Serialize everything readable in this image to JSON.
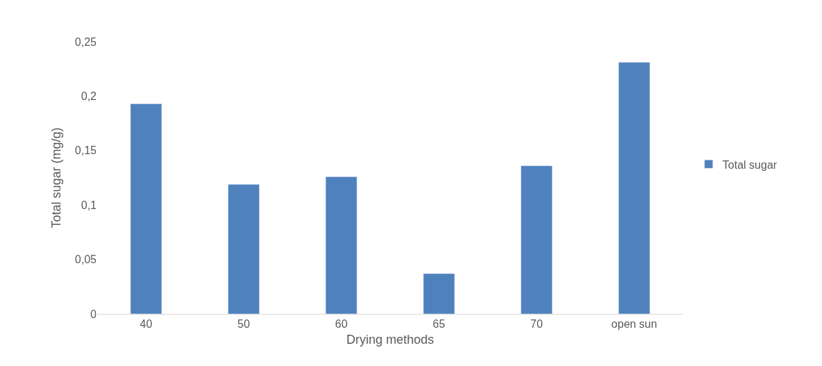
{
  "chart_data": {
    "type": "bar",
    "xlabel": "Drying methods",
    "ylabel": "Total sugar (mg/g)",
    "categories": [
      "40",
      "50",
      "60",
      "65",
      "70",
      "open sun"
    ],
    "series": [
      {
        "name": "Total sugar",
        "color": "#4f81bd",
        "values": [
          0.193,
          0.119,
          0.126,
          0.037,
          0.136,
          0.231
        ]
      }
    ],
    "ylim": [
      0,
      0.25
    ],
    "yticks": [
      {
        "value": 0,
        "label": "0"
      },
      {
        "value": 0.05,
        "label": "0,05"
      },
      {
        "value": 0.1,
        "label": "0,1"
      },
      {
        "value": 0.15,
        "label": "0,15"
      },
      {
        "value": 0.2,
        "label": "0,2"
      },
      {
        "value": 0.25,
        "label": "0,25"
      }
    ],
    "legend": "right"
  }
}
